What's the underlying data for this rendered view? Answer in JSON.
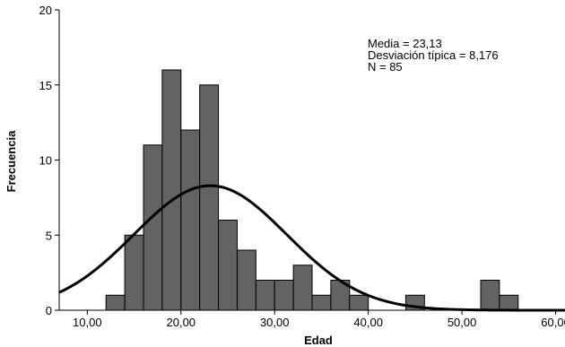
{
  "chart_data": {
    "type": "bar",
    "subtype": "histogram",
    "xlabel": "Edad",
    "ylabel": "Frecuencia",
    "xlim": [
      7,
      61
    ],
    "ylim": [
      0,
      20
    ],
    "bin_width": 2,
    "bins": [
      {
        "start": 12,
        "end": 14,
        "count": 1
      },
      {
        "start": 14,
        "end": 16,
        "count": 5
      },
      {
        "start": 16,
        "end": 18,
        "count": 11
      },
      {
        "start": 18,
        "end": 20,
        "count": 16
      },
      {
        "start": 20,
        "end": 22,
        "count": 12
      },
      {
        "start": 22,
        "end": 24,
        "count": 15
      },
      {
        "start": 24,
        "end": 26,
        "count": 6
      },
      {
        "start": 26,
        "end": 28,
        "count": 4
      },
      {
        "start": 28,
        "end": 30,
        "count": 2
      },
      {
        "start": 30,
        "end": 32,
        "count": 2
      },
      {
        "start": 32,
        "end": 34,
        "count": 3
      },
      {
        "start": 34,
        "end": 36,
        "count": 1
      },
      {
        "start": 36,
        "end": 38,
        "count": 2
      },
      {
        "start": 38,
        "end": 40,
        "count": 1
      },
      {
        "start": 44,
        "end": 46,
        "count": 1
      },
      {
        "start": 52,
        "end": 54,
        "count": 2
      },
      {
        "start": 54,
        "end": 56,
        "count": 1
      }
    ],
    "x_ticks": [
      {
        "value": 10,
        "label": "10,00"
      },
      {
        "value": 20,
        "label": "20,00"
      },
      {
        "value": 30,
        "label": "30,00"
      },
      {
        "value": 40,
        "label": "40,00"
      },
      {
        "value": 50,
        "label": "50,00"
      },
      {
        "value": 60,
        "label": "60,00"
      }
    ],
    "y_ticks": [
      {
        "value": 0,
        "label": "0"
      },
      {
        "value": 5,
        "label": "5"
      },
      {
        "value": 10,
        "label": "10"
      },
      {
        "value": 15,
        "label": "15"
      },
      {
        "value": 20,
        "label": "20"
      }
    ],
    "normal_curve": {
      "mean": 23.13,
      "sd": 8.176,
      "n": 85
    },
    "stats": {
      "mean_text": "Media = 23,13",
      "sd_text": "Desviación típica = 8,176",
      "n_text": "N = 85"
    },
    "colors": {
      "bar_fill": "#636363",
      "bar_stroke": "#000000",
      "curve": "#000000",
      "background": "#ffffff"
    },
    "grid": false
  }
}
